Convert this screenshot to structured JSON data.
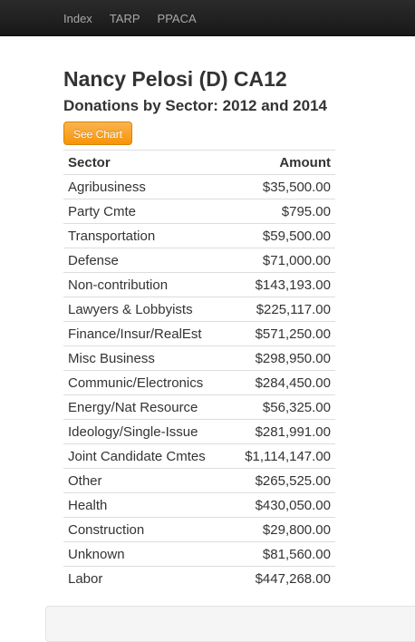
{
  "nav": {
    "items": [
      {
        "label": "Index"
      },
      {
        "label": "TARP"
      },
      {
        "label": "PPACA"
      }
    ]
  },
  "page": {
    "title": "Nancy Pelosi (D) CA12",
    "subtitle": "Donations by Sector: 2012 and 2014",
    "chart_button_label": "See Chart"
  },
  "table": {
    "headers": {
      "sector": "Sector",
      "amount": "Amount"
    },
    "rows": [
      {
        "sector": "Agribusiness",
        "amount": "$35,500.00"
      },
      {
        "sector": "Party Cmte",
        "amount": "$795.00"
      },
      {
        "sector": "Transportation",
        "amount": "$59,500.00"
      },
      {
        "sector": "Defense",
        "amount": "$71,000.00"
      },
      {
        "sector": "Non-contribution",
        "amount": "$143,193.00"
      },
      {
        "sector": "Lawyers & Lobbyists",
        "amount": "$225,117.00"
      },
      {
        "sector": "Finance/Insur/RealEst",
        "amount": "$571,250.00"
      },
      {
        "sector": "Misc Business",
        "amount": "$298,950.00"
      },
      {
        "sector": "Communic/Electronics",
        "amount": "$284,450.00"
      },
      {
        "sector": "Energy/Nat Resource",
        "amount": "$56,325.00"
      },
      {
        "sector": "Ideology/Single-Issue",
        "amount": "$281,991.00"
      },
      {
        "sector": "Joint Candidate Cmtes",
        "amount": "$1,114,147.00"
      },
      {
        "sector": "Other",
        "amount": "$265,525.00"
      },
      {
        "sector": "Health",
        "amount": "$430,050.00"
      },
      {
        "sector": "Construction",
        "amount": "$29,800.00"
      },
      {
        "sector": "Unknown",
        "amount": "$81,560.00"
      },
      {
        "sector": "Labor",
        "amount": "$447,268.00"
      }
    ]
  },
  "colors": {
    "navbar": "#1b1b1b",
    "nav_text": "#a8a8a8",
    "button": "#f89406",
    "text": "#333333",
    "row_border": "#dddddd"
  }
}
